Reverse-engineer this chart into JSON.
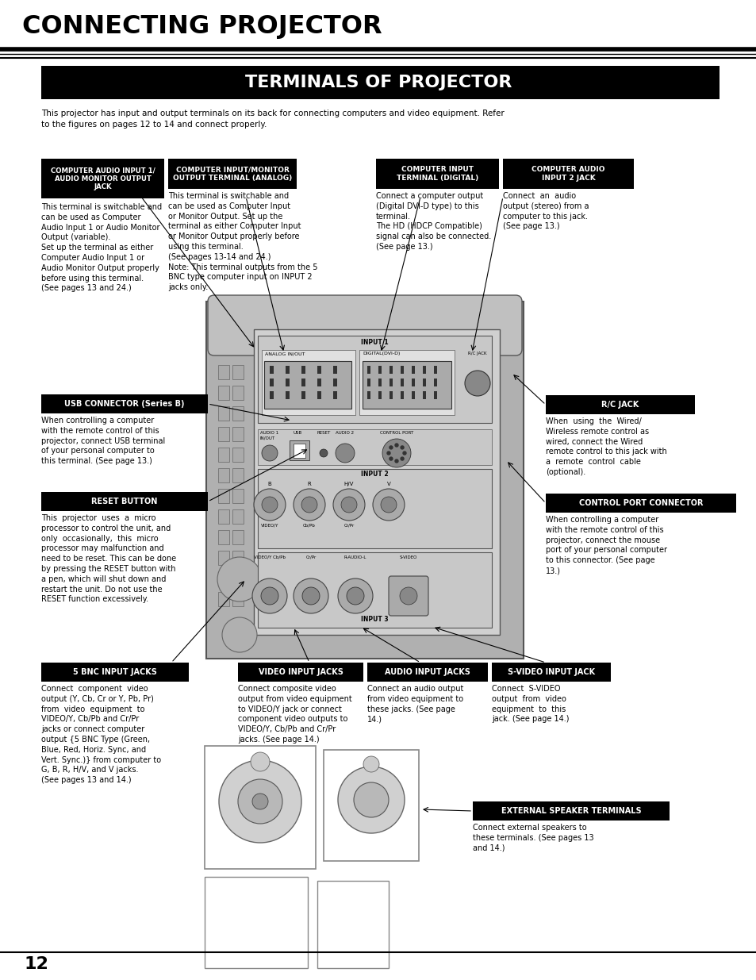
{
  "title_main": "CONNECTING PROJECTOR",
  "title_sub": "TERMINALS OF PROJECTOR",
  "intro_text": "This projector has input and output terminals on its back for connecting computers and video equipment. Refer\nto the figures on pages 12 to 14 and connect properly.",
  "page_number": "12",
  "bg": "#ffffff",
  "black": "#000000",
  "white": "#ffffff",
  "gray_panel": "#b8b8b8",
  "gray_dark": "#888888",
  "gray_mid": "#aaaaaa",
  "gray_light": "#cccccc",
  "gray_inner": "#999999"
}
